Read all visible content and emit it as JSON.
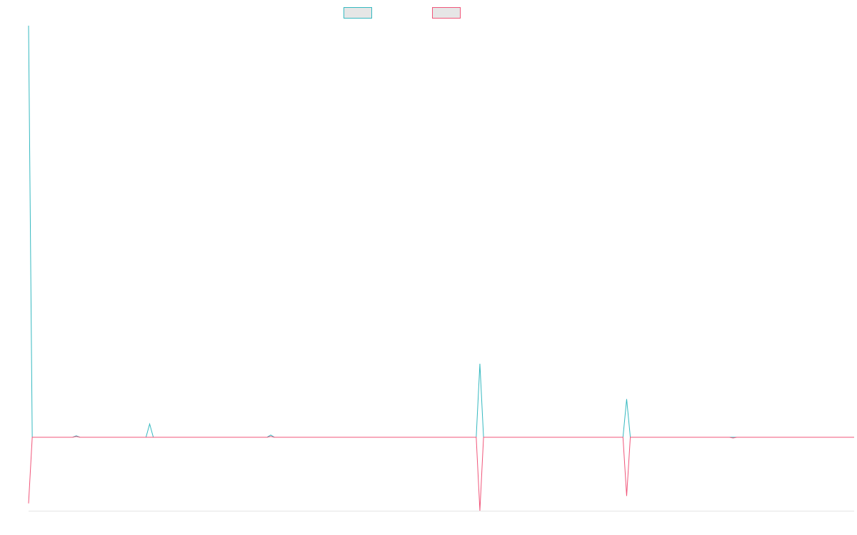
{
  "chart_data": {
    "type": "line",
    "title": "",
    "xlabel": "",
    "ylabel": "",
    "x": [
      0,
      1,
      2,
      3,
      4,
      5,
      6,
      7,
      8,
      9,
      10,
      11,
      12,
      13,
      14,
      15,
      16,
      17,
      18,
      19,
      20,
      21,
      22,
      23,
      24,
      25,
      26,
      27,
      28,
      29,
      30,
      31,
      32,
      33,
      34,
      35,
      36,
      37,
      38,
      39,
      40,
      41,
      42,
      43,
      44,
      45,
      46,
      47,
      48,
      49,
      50,
      51,
      52,
      53,
      54,
      55,
      56,
      57,
      58,
      59,
      60,
      61,
      62,
      63,
      64,
      65,
      66,
      67,
      68,
      69,
      70,
      71,
      72,
      73,
      74,
      75,
      76,
      77,
      78,
      79,
      80,
      81,
      82,
      83,
      84,
      85,
      86,
      87,
      88,
      89,
      90,
      91,
      92,
      93,
      94,
      95,
      96,
      97,
      98,
      99,
      100,
      101,
      102,
      103,
      104,
      105,
      106,
      107,
      108,
      109,
      110,
      111,
      112,
      113,
      114,
      115,
      116,
      117,
      118,
      119,
      120,
      121,
      122,
      123,
      124,
      125,
      126,
      127,
      128,
      129,
      130,
      131,
      132,
      133,
      134,
      135,
      136,
      137,
      138,
      139,
      140,
      141,
      142,
      143,
      144,
      145,
      146,
      147,
      148,
      149,
      150,
      151,
      152,
      153,
      154,
      155,
      156,
      157,
      158,
      159,
      160,
      161,
      162,
      163,
      164,
      165,
      166,
      167,
      168,
      169,
      170,
      171,
      172,
      173,
      174,
      175,
      176,
      177,
      178,
      179,
      180,
      181,
      182,
      183,
      184,
      185,
      186,
      187,
      188,
      189,
      190,
      191,
      192,
      193,
      194,
      195,
      196,
      197,
      198,
      199,
      200,
      201,
      202,
      203,
      204,
      205,
      206,
      207,
      208,
      209,
      210,
      211,
      212,
      213,
      214,
      215,
      216,
      217,
      218,
      219,
      220,
      221,
      222,
      223,
      224,
      225
    ],
    "xlim": [
      0,
      225
    ],
    "ylim": [
      -100,
      560
    ],
    "grid": false,
    "legend_position": "top",
    "series": [
      {
        "name": "",
        "color": "#36b9c0",
        "values": {
          "0": 560,
          "1": 0,
          "13": 2,
          "33": 18,
          "66": 3,
          "123": 100,
          "163": 52,
          "192": 0
        }
      },
      {
        "name": "",
        "color": "#f0567a",
        "values": {
          "0": -90,
          "1": 0,
          "13": 1,
          "66": 1,
          "123": -100,
          "163": -80,
          "192": -1
        }
      }
    ]
  }
}
